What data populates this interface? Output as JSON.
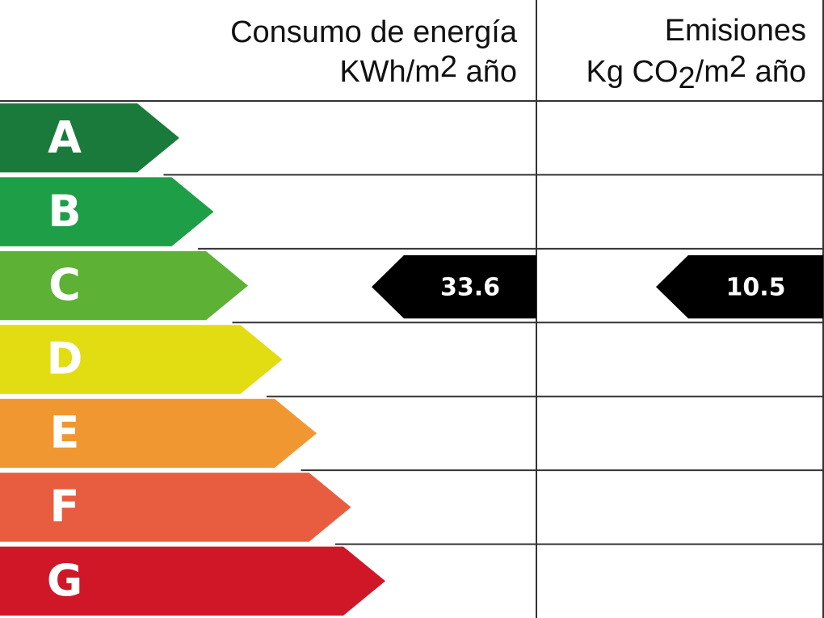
{
  "header": {
    "consumption_title": "Consumo de energía",
    "consumption_unit": [
      "KWh/m",
      "2",
      " año"
    ],
    "emissions_title": "Emisiones",
    "emissions_unit": [
      "Kg CO",
      "2",
      "/m",
      "2",
      " año"
    ]
  },
  "classes": [
    {
      "label": "A",
      "color": "#1a7a3c"
    },
    {
      "label": "B",
      "color": "#1f9e48"
    },
    {
      "label": "C",
      "color": "#5db135"
    },
    {
      "label": "D",
      "color": "#e2dc12"
    },
    {
      "label": "E",
      "color": "#f19731"
    },
    {
      "label": "F",
      "color": "#e85d3f"
    },
    {
      "label": "G",
      "color": "#cf1728"
    }
  ],
  "consumption": {
    "class": "C",
    "value": 33.6
  },
  "emissions": {
    "class": "C",
    "value": 10.5
  }
}
